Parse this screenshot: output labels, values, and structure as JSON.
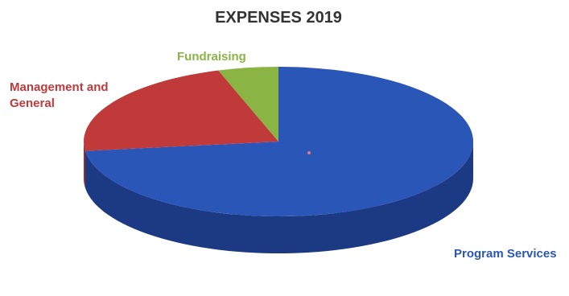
{
  "chart_data": {
    "type": "pie",
    "title": "EXPENSES 2019",
    "style": "3d",
    "slices": [
      {
        "label": "Program Services",
        "value": 73,
        "color": "#2a56b8",
        "side_color": "#1c3a84",
        "label_lines": [
          "Program Services"
        ]
      },
      {
        "label": "Management and General",
        "value": 22,
        "color": "#c03a3a",
        "side_color": "#8a2626",
        "label_lines": [
          "Management and",
          "General"
        ]
      },
      {
        "label": "Fundraising",
        "value": 5,
        "color": "#8ab545",
        "side_color": "#5f7f2c",
        "label_lines": [
          "Fundraising"
        ]
      }
    ],
    "title_color": "#333333"
  }
}
